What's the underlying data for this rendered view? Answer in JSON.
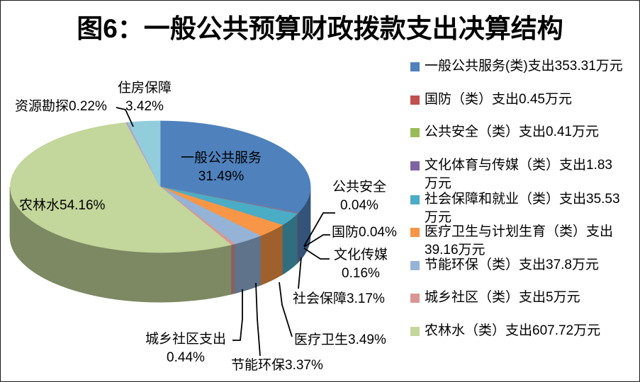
{
  "title": "图6：一般公共预算财政拨款支出决算结构",
  "unit": "万元",
  "chart_data": {
    "type": "pie",
    "style": "3d-pie",
    "title": "图6：一般公共预算财政拨款支出决算结构",
    "legend_position": "right",
    "slices": [
      {
        "id": "ggfw",
        "name": "一般公共服务",
        "value": 353.31,
        "pct": 31.49,
        "color": "#4F81BD"
      },
      {
        "id": "gf",
        "name": "国防",
        "value": 0.45,
        "pct": 0.04,
        "color": "#C0504D"
      },
      {
        "id": "ggaq",
        "name": "公共安全",
        "value": 0.41,
        "pct": 0.04,
        "color": "#9BBB59"
      },
      {
        "id": "whcm",
        "name": "文化体育与传媒",
        "value": 1.83,
        "pct": 0.16,
        "color": "#8064A2"
      },
      {
        "id": "shbz",
        "name": "社会保障和就业",
        "value": 35.53,
        "pct": 3.17,
        "color": "#4BACC6"
      },
      {
        "id": "ylws",
        "name": "医疗卫生与计划生育",
        "value": 39.16,
        "pct": 3.49,
        "color": "#F79646"
      },
      {
        "id": "jnhb",
        "name": "节能环保",
        "value": 37.8,
        "pct": 3.37,
        "color": "#95B3D7"
      },
      {
        "id": "cxsq",
        "name": "城乡社区",
        "value": 5,
        "pct": 0.44,
        "color": "#D99694"
      },
      {
        "id": "nls",
        "name": "农林水",
        "value": 607.72,
        "pct": 54.16,
        "color": "#C3D69B"
      },
      {
        "id": "zykt",
        "name": "资源勘探",
        "pct": 0.22,
        "color": "#B3A2C7"
      },
      {
        "id": "zfbz",
        "name": "住房保障",
        "pct": 3.42,
        "color": "#92CDDC"
      }
    ],
    "callouts": [
      {
        "id": "zfbz",
        "lines": [
          "住房保障",
          "3.42%"
        ]
      },
      {
        "id": "zykt",
        "lines": [
          "资源勘探0.22%"
        ]
      },
      {
        "id": "ggfw",
        "lines": [
          "一般公共服务",
          "31.49%"
        ]
      },
      {
        "id": "ggaq",
        "lines": [
          "公共安全",
          "0.04%"
        ]
      },
      {
        "id": "gf",
        "lines": [
          "国防0.04%"
        ]
      },
      {
        "id": "whcm",
        "lines": [
          "文化传媒",
          "0.16%"
        ]
      },
      {
        "id": "shbz",
        "lines": [
          "社会保障3.17%"
        ]
      },
      {
        "id": "ylws",
        "lines": [
          "医疗卫生3.49%"
        ]
      },
      {
        "id": "jnhb",
        "lines": [
          "节能环保3.37%"
        ]
      },
      {
        "id": "cxsq",
        "lines": [
          "城乡社区支出",
          "0.44%"
        ]
      },
      {
        "id": "nls",
        "lines": [
          "农林水54.16%"
        ]
      }
    ]
  },
  "legend": {
    "items": [
      {
        "color": "#4F81BD",
        "lines": [
          "一般公共服务(类)支出353.31万元"
        ]
      },
      {
        "color": "#C0504D",
        "lines": [
          "国防（类）支出0.45万元"
        ]
      },
      {
        "color": "#9BBB59",
        "lines": [
          "公共安全（类）支出0.41万元"
        ]
      },
      {
        "color": "#8064A2",
        "lines": [
          "文化体育与传媒（类）支出1.83",
          "万元"
        ]
      },
      {
        "color": "#4BACC6",
        "lines": [
          "社会保障和就业（类）支出35.53",
          "万元"
        ]
      },
      {
        "color": "#F79646",
        "lines": [
          "医疗卫生与计划生育（类）支出",
          "39.16万元"
        ]
      },
      {
        "color": "#95B3D7",
        "lines": [
          "节能环保（类）支出37.8万元"
        ]
      },
      {
        "color": "#D99694",
        "lines": [
          "城乡社区（类）支出5万元"
        ]
      },
      {
        "color": "#C3D69B",
        "lines": [
          "农林水（类）支出607.72万元"
        ]
      }
    ]
  }
}
